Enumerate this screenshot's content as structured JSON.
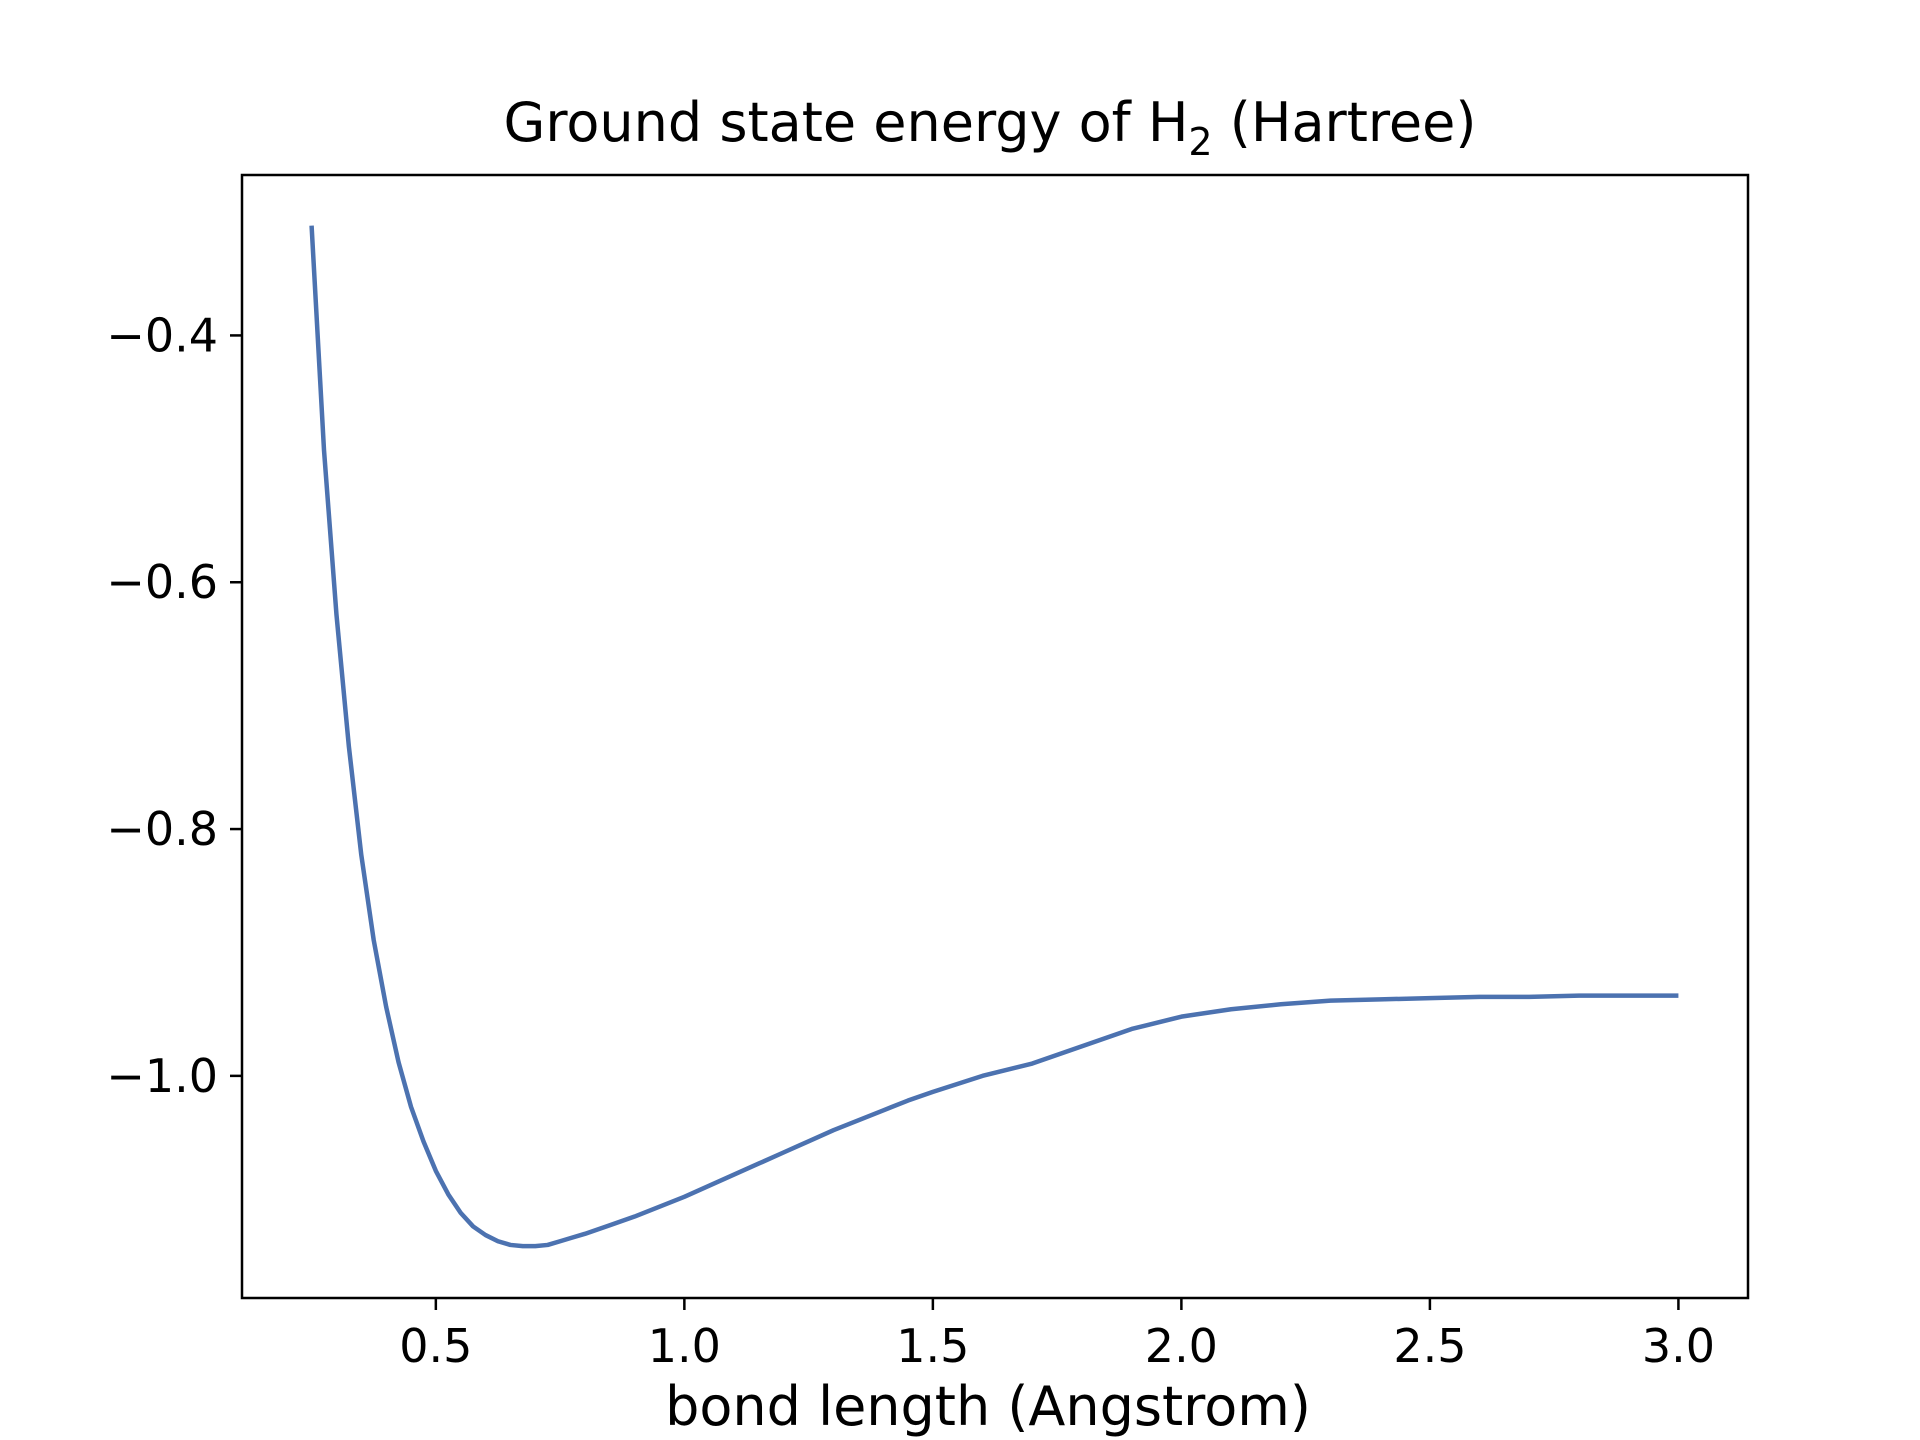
{
  "chart_data": {
    "type": "line",
    "title_main": "Ground state energy of H",
    "title_subscript": "2",
    "title_suffix": " (Hartree)",
    "xlabel": "bond length (Angstrom)",
    "ylabel": "",
    "xlim": [
      0.11,
      3.14
    ],
    "ylim": [
      -1.18,
      -0.27
    ],
    "x_ticks": [
      0.5,
      1.0,
      1.5,
      2.0,
      2.5,
      3.0
    ],
    "x_tick_labels": [
      "0.5",
      "1.0",
      "1.5",
      "2.0",
      "2.5",
      "3.0"
    ],
    "y_ticks": [
      -0.4,
      -0.6,
      -0.8,
      -1.0
    ],
    "y_tick_labels": [
      "−0.4",
      "−0.6",
      "−0.8",
      "−1.0"
    ],
    "grid": false,
    "legend": "none",
    "series": [
      {
        "color": "#4c72b0",
        "x": [
          0.25,
          0.275,
          0.3,
          0.325,
          0.35,
          0.375,
          0.4,
          0.425,
          0.45,
          0.475,
          0.5,
          0.525,
          0.55,
          0.575,
          0.6,
          0.625,
          0.65,
          0.675,
          0.7,
          0.725,
          0.75,
          0.775,
          0.8,
          0.85,
          0.9,
          0.95,
          1.0,
          1.05,
          1.1,
          1.15,
          1.2,
          1.25,
          1.3,
          1.35,
          1.4,
          1.45,
          1.5,
          1.6,
          1.7,
          1.8,
          1.9,
          2.0,
          2.1,
          2.2,
          2.3,
          2.4,
          2.5,
          2.6,
          2.7,
          2.8,
          2.9,
          3.0
        ],
        "y": [
          -0.311,
          -0.493,
          -0.626,
          -0.733,
          -0.821,
          -0.89,
          -0.944,
          -0.989,
          -1.025,
          -1.053,
          -1.077,
          -1.096,
          -1.111,
          -1.122,
          -1.129,
          -1.134,
          -1.137,
          -1.138,
          -1.138,
          -1.137,
          -1.134,
          -1.131,
          -1.128,
          -1.121,
          -1.114,
          -1.106,
          -1.098,
          -1.089,
          -1.08,
          -1.071,
          -1.062,
          -1.053,
          -1.044,
          -1.036,
          -1.028,
          -1.02,
          -1.013,
          -1.0,
          -0.99,
          -0.976,
          -0.962,
          -0.952,
          -0.946,
          -0.942,
          -0.939,
          -0.938,
          -0.937,
          -0.936,
          -0.936,
          -0.935,
          -0.935,
          -0.935
        ]
      }
    ]
  }
}
